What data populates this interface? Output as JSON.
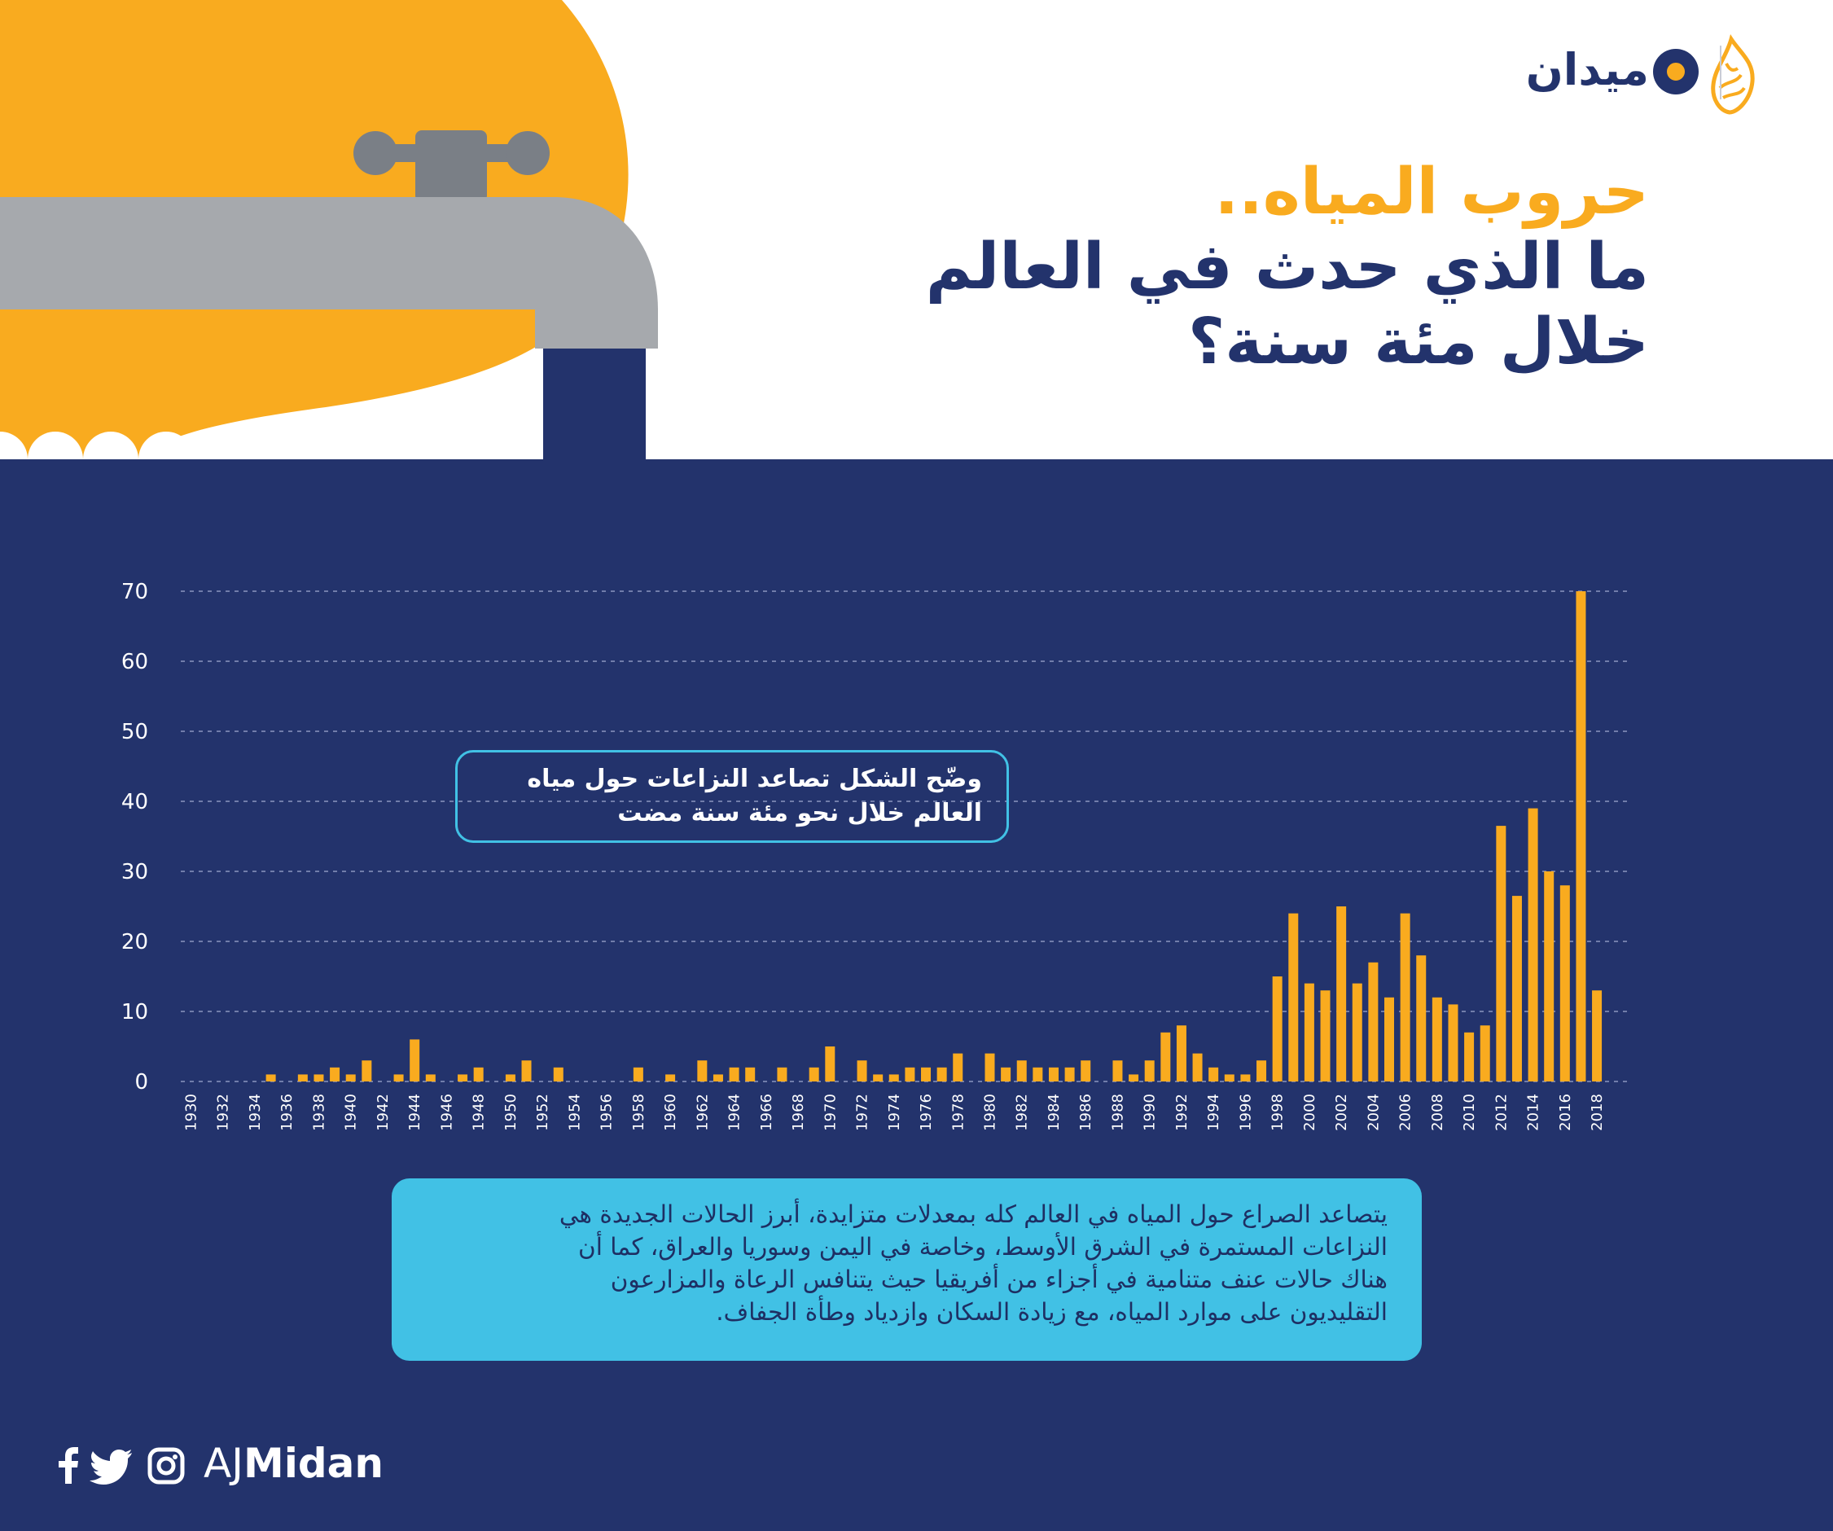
{
  "brand": {
    "name": "ميدان"
  },
  "title": {
    "line1": "حروب المياه..",
    "line2": "ما الذي حدث في العالم",
    "line3": "خلال مئة سنة؟"
  },
  "callout": {
    "line1": "وضّح الشكل تصاعد النزاعات حول مياه",
    "line2": "العالم خلال نحو مئة سنة مضت"
  },
  "description": {
    "lines": [
      "يتصاعد الصراع حول المياه في العالم كله بمعدلات متزايدة، أبرز الحالات الجديدة هي",
      "النزاعات المستمرة في الشرق الأوسط، وخاصة في اليمن وسوريا والعراق، كما أن",
      "هناك حالات عنف متنامية في أجزاء من أفريقيا حيث يتنافس الرعاة والمزارعون",
      "التقليديون على موارد المياه، مع زيادة السكان وازدياد وطأة الجفاف."
    ]
  },
  "social": {
    "handle_prefix": "AJ",
    "handle_bold": "Midan",
    "icons": [
      "facebook-icon",
      "twitter-icon",
      "instagram-icon"
    ]
  },
  "colors": {
    "navy": "#23336c",
    "orange": "#f9ab1f",
    "cyan": "#41c1e5",
    "gray": "#a6a9ad",
    "valve": "#7a7f86"
  },
  "chart_data": {
    "type": "bar",
    "x": [
      1930,
      1931,
      1932,
      1933,
      1934,
      1935,
      1936,
      1937,
      1938,
      1939,
      1940,
      1941,
      1942,
      1943,
      1944,
      1945,
      1946,
      1947,
      1948,
      1949,
      1950,
      1951,
      1952,
      1953,
      1954,
      1955,
      1956,
      1957,
      1958,
      1959,
      1960,
      1961,
      1962,
      1963,
      1964,
      1965,
      1966,
      1967,
      1968,
      1969,
      1970,
      1971,
      1972,
      1973,
      1974,
      1975,
      1976,
      1977,
      1978,
      1979,
      1980,
      1981,
      1982,
      1983,
      1984,
      1985,
      1986,
      1987,
      1988,
      1989,
      1990,
      1991,
      1992,
      1993,
      1994,
      1995,
      1996,
      1997,
      1998,
      1999,
      2000,
      2001,
      2002,
      2003,
      2004,
      2005,
      2006,
      2007,
      2008,
      2009,
      2010,
      2011,
      2012,
      2013,
      2014,
      2015,
      2016,
      2017,
      2018
    ],
    "values": [
      0,
      0,
      0,
      0,
      0,
      1,
      0,
      1,
      1,
      2,
      1,
      3,
      0,
      1,
      6,
      1,
      0,
      1,
      2,
      0,
      1,
      3,
      0,
      2,
      0,
      0,
      0,
      0,
      2,
      0,
      1,
      0,
      3,
      1,
      2,
      2,
      0,
      2,
      0,
      2,
      5,
      0,
      3,
      1,
      1,
      2,
      2,
      2,
      4,
      0,
      4,
      2,
      3,
      2,
      2,
      2,
      3,
      0,
      3,
      1,
      3,
      7,
      8,
      4,
      2,
      1,
      1,
      3,
      15,
      24,
      14,
      13,
      25,
      14,
      17,
      12,
      24,
      18,
      12,
      11,
      7,
      8,
      36.5,
      26.5,
      39,
      30,
      28,
      70,
      13
    ],
    "xticks": [
      1930,
      1932,
      1934,
      1936,
      1938,
      1940,
      1942,
      1944,
      1946,
      1948,
      1950,
      1952,
      1954,
      1956,
      1958,
      1960,
      1962,
      1964,
      1966,
      1968,
      1970,
      1972,
      1974,
      1976,
      1978,
      1980,
      1982,
      1984,
      1986,
      1988,
      1990,
      1992,
      1994,
      1996,
      1998,
      2000,
      2002,
      2004,
      2006,
      2008,
      2010,
      2012,
      2014,
      2016,
      2018
    ],
    "yticks": [
      0,
      10,
      20,
      30,
      40,
      50,
      60,
      70
    ],
    "ylim": [
      0,
      70
    ],
    "grid": true,
    "bar_color": "#f9ab1f"
  }
}
